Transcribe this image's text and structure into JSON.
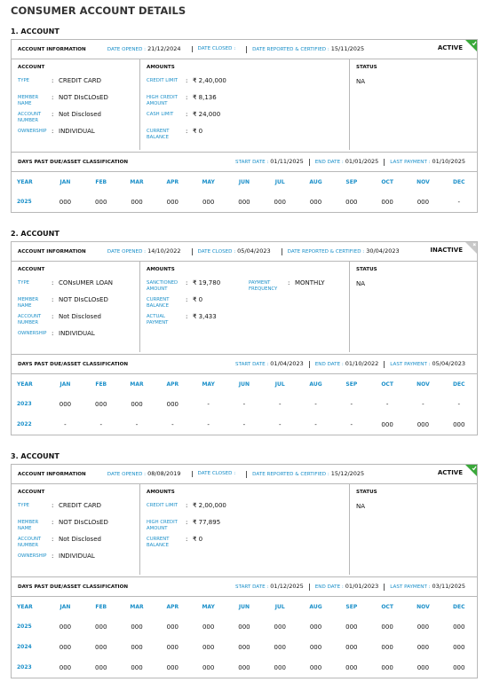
{
  "title": "CONSUMER ACCOUNT DETAILS",
  "accounts": [
    {
      "heading": "1. ACCOUNT",
      "info": {
        "title": "ACCOUNT INFORMATION",
        "fields": [
          {
            "label": "DATE OPENED :",
            "value": "21/12/2024"
          },
          {
            "label": "DATE CLOSED :"
          },
          {
            "label": "DATE REPORTED & CERTIFIED :",
            "value": "15/11/2025"
          }
        ],
        "status": "ACTIVE"
      },
      "account": {
        "heading": "ACCOUNT",
        "fields": [
          {
            "label": "TYPE",
            "sep": ":",
            "value": "CREDIT CARD"
          },
          {
            "label": "MEMBER NAME",
            "sep": ":",
            "value": "NOT DIsCLOsED"
          },
          {
            "label": "ACCOUNT NUMBER",
            "sep": ":",
            "value": "Not Disclosed"
          },
          {
            "label": "OWNERSHIP",
            "sep": ":",
            "value": "INDIVIDUAL"
          }
        ]
      },
      "amounts": {
        "heading": "AMOUNTS",
        "fields": [
          {
            "label": "CREDIT LIMIT",
            "sep": ":",
            "value": "₹ 2,40,000"
          },
          {
            "label": "HIGH CREDIT AMOUNT",
            "sep": ":",
            "value": "₹ 8,136"
          },
          {
            "label": "CASH LIMIT",
            "sep": ":",
            "value": "₹ 24,000"
          },
          {
            "label": "CURRENT BALANCE",
            "sep": ":",
            "value": "₹ 0"
          }
        ]
      },
      "status": {
        "heading": "STATUS",
        "value": "NA"
      },
      "dpd": {
        "title": "DAYS PAST DUE/ASSET CLASSIFICATION",
        "fields": [
          {
            "label": "START DATE :",
            "value": "01/11/2025"
          },
          {
            "label": "END DATE :",
            "value": "01/01/2025"
          },
          {
            "label": "LAST PAYMENT :",
            "value": "01/10/2025"
          }
        ]
      },
      "table": {
        "header": [
          "YEAR",
          "JAN",
          "FEB",
          "MAR",
          "APR",
          "MAY",
          "JUN",
          "JUL",
          "AUG",
          "SEP",
          "OCT",
          "NOV",
          "DEC"
        ],
        "rows": [
          [
            "2025",
            "000",
            "000",
            "000",
            "000",
            "000",
            "000",
            "000",
            "000",
            "000",
            "000",
            "000",
            "-"
          ]
        ]
      }
    },
    {
      "heading": "2. ACCOUNT",
      "info": {
        "title": "ACCOUNT INFORMATION",
        "fields": [
          {
            "label": "DATE OPENED :",
            "value": "14/10/2022"
          },
          {
            "label": "DATE CLOSED :",
            "value": "05/04/2023"
          },
          {
            "label": "DATE REPORTED & CERTIFIED :",
            "value": "30/04/2023"
          }
        ],
        "status": "INACTIVE"
      },
      "account": {
        "heading": "ACCOUNT",
        "fields": [
          {
            "label": "TYPE",
            "sep": ":",
            "value": "CONsUMER LOAN"
          },
          {
            "label": "MEMBER NAME",
            "sep": ":",
            "value": "NOT DIsCLOsED"
          },
          {
            "label": "ACCOUNT NUMBER",
            "sep": ":",
            "value": "Not Disclosed"
          },
          {
            "label": "OWNERSHIP",
            "sep": ":",
            "value": "INDIVIDUAL"
          }
        ]
      },
      "amounts": {
        "heading": "AMOUNTS",
        "fields": [
          {
            "label": "SANCTIONED AMOUNT",
            "sep": ":",
            "value": "₹ 19,780"
          },
          {
            "label": "CURRENT BALANCE",
            "sep": ":",
            "value": "₹ 0"
          },
          {
            "label": "ACTUAL PAYMENT",
            "sep": ":",
            "value": "₹ 3,433"
          }
        ],
        "side_fields": [
          {
            "label": "PAYMENT FREQUENCY",
            "sep": ":",
            "value": "MONTHLY"
          }
        ]
      },
      "status": {
        "heading": "STATUS",
        "value": "NA"
      },
      "dpd": {
        "title": "DAYS PAST DUE/ASSET CLASSIFICATION",
        "fields": [
          {
            "label": "START DATE :",
            "value": "01/04/2023"
          },
          {
            "label": "END DATE :",
            "value": "01/10/2022"
          },
          {
            "label": "LAST PAYMENT :",
            "value": "05/04/2023"
          }
        ]
      },
      "table": {
        "header": [
          "YEAR",
          "JAN",
          "FEB",
          "MAR",
          "APR",
          "MAY",
          "JUN",
          "JUL",
          "AUG",
          "SEP",
          "OCT",
          "NOV",
          "DEC"
        ],
        "rows": [
          [
            "2023",
            "000",
            "000",
            "000",
            "000",
            "-",
            "-",
            "-",
            "-",
            "-",
            "-",
            "-",
            "-"
          ],
          [
            "2022",
            "-",
            "-",
            "-",
            "-",
            "-",
            "-",
            "-",
            "-",
            "-",
            "000",
            "000",
            "000"
          ]
        ]
      }
    },
    {
      "heading": "3. ACCOUNT",
      "info": {
        "title": "ACCOUNT INFORMATION",
        "fields": [
          {
            "label": "DATE OPENED :",
            "value": "08/08/2019"
          },
          {
            "label": "DATE CLOSED :"
          },
          {
            "label": "DATE REPORTED & CERTIFIED :",
            "value": "15/12/2025"
          }
        ],
        "status": "ACTIVE"
      },
      "account": {
        "heading": "ACCOUNT",
        "fields": [
          {
            "label": "TYPE",
            "sep": ":",
            "value": "CREDIT CARD"
          },
          {
            "label": "MEMBER NAME",
            "sep": ":",
            "value": "NOT DIsCLOsED"
          },
          {
            "label": "ACCOUNT NUMBER",
            "sep": ":",
            "value": "Not Disclosed"
          },
          {
            "label": "OWNERSHIP",
            "sep": ":",
            "value": "INDIVIDUAL"
          }
        ]
      },
      "amounts": {
        "heading": "AMOUNTS",
        "fields": [
          {
            "label": "CREDIT LIMIT",
            "sep": ":",
            "value": "₹ 2,00,000"
          },
          {
            "label": "HIGH CREDIT AMOUNT",
            "sep": ":",
            "value": "₹ 77,895"
          },
          {
            "label": "CURRENT BALANCE",
            "sep": ":",
            "value": "₹ 0"
          }
        ]
      },
      "status": {
        "heading": "STATUS",
        "value": "NA"
      },
      "dpd": {
        "title": "DAYS PAST DUE/ASSET CLASSIFICATION",
        "fields": [
          {
            "label": "START DATE :",
            "value": "01/12/2025"
          },
          {
            "label": "END DATE :",
            "value": "01/01/2023"
          },
          {
            "label": "LAST PAYMENT :",
            "value": "03/11/2025"
          }
        ]
      },
      "table": {
        "header": [
          "YEAR",
          "JAN",
          "FEB",
          "MAR",
          "APR",
          "MAY",
          "JUN",
          "JUL",
          "AUG",
          "SEP",
          "OCT",
          "NOV",
          "DEC"
        ],
        "rows": [
          [
            "2025",
            "000",
            "000",
            "000",
            "000",
            "000",
            "000",
            "000",
            "000",
            "000",
            "000",
            "000",
            "000"
          ],
          [
            "2024",
            "000",
            "000",
            "000",
            "000",
            "000",
            "000",
            "000",
            "000",
            "000",
            "000",
            "000",
            "000"
          ],
          [
            "2023",
            "000",
            "000",
            "000",
            "000",
            "000",
            "000",
            "000",
            "000",
            "000",
            "000",
            "000",
            "000"
          ]
        ]
      }
    }
  ]
}
